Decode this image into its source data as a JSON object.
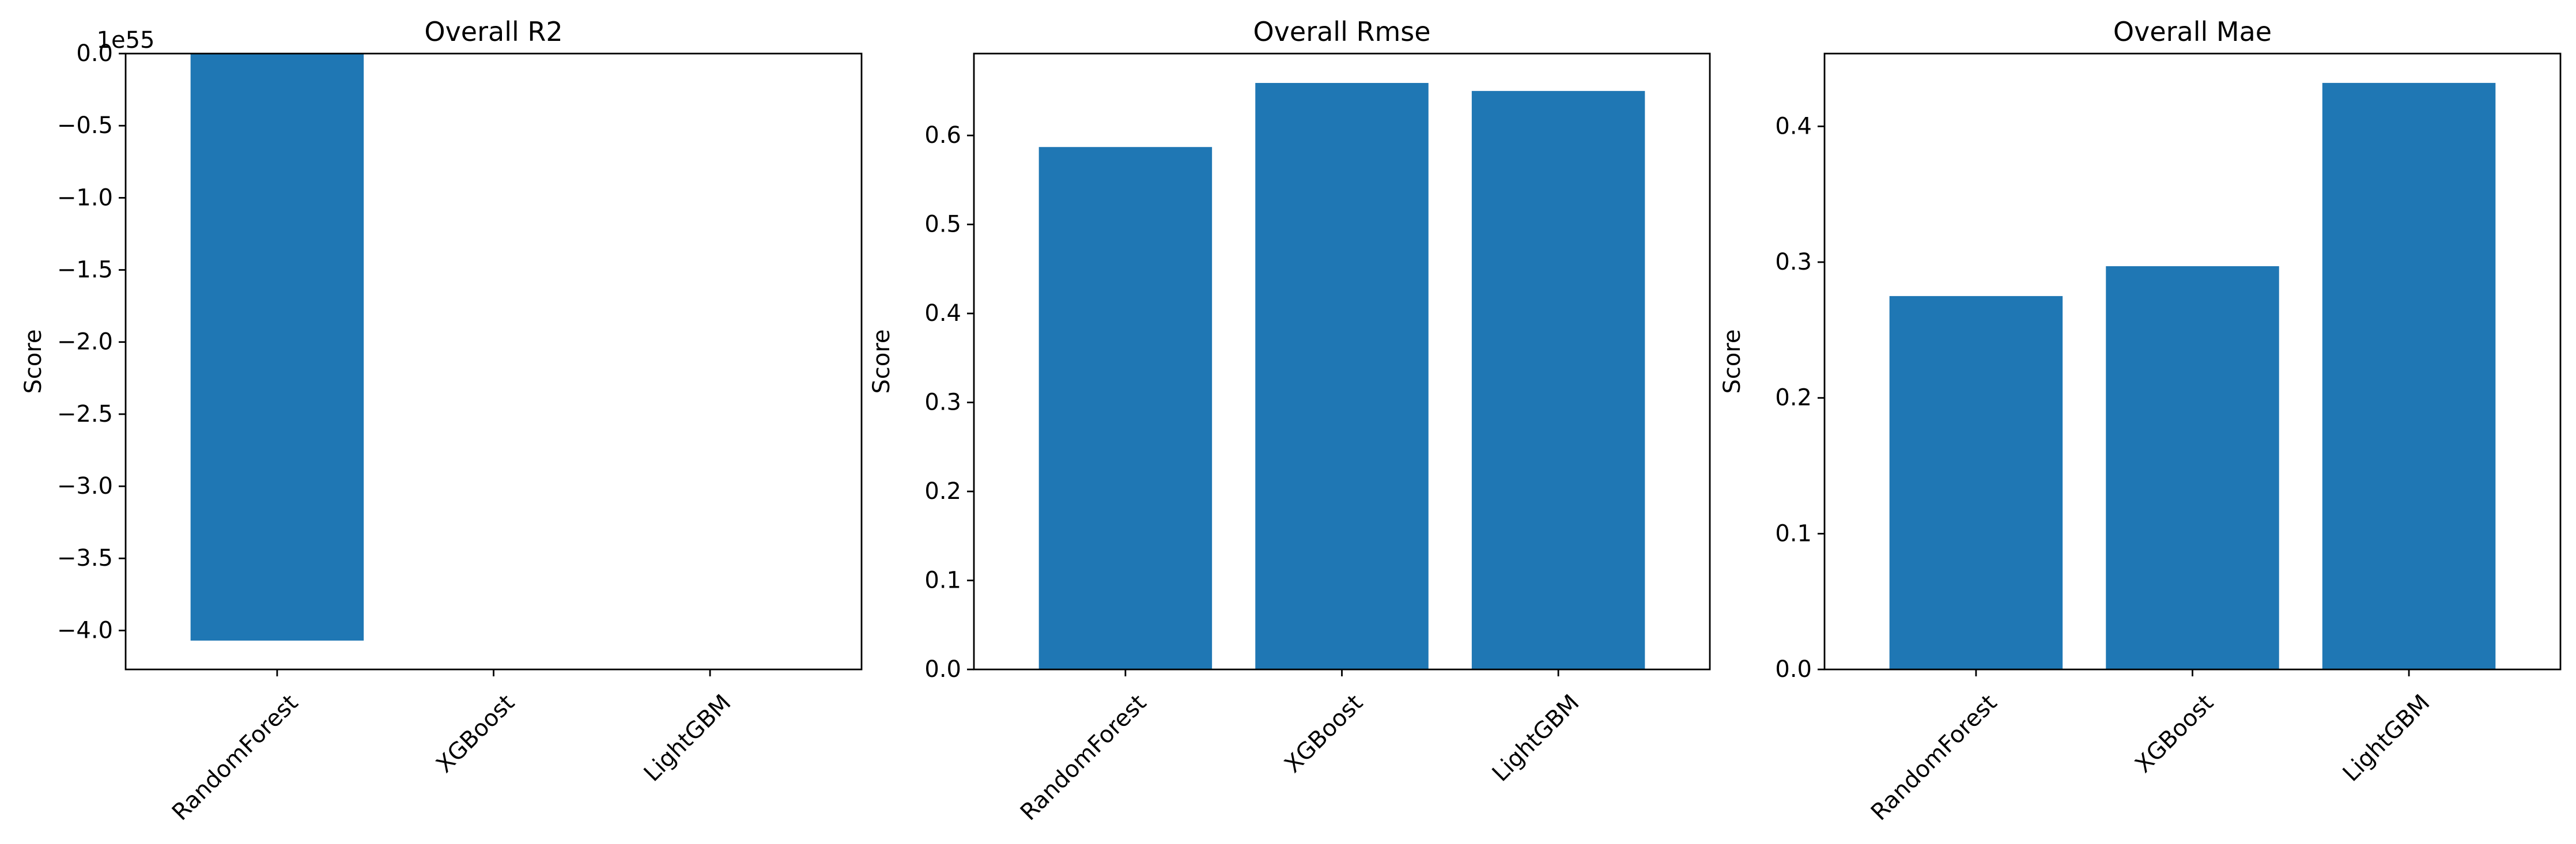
{
  "figure": {
    "bar_color": "#1f77b4"
  },
  "chart_data": [
    {
      "type": "bar",
      "title": "Overall R2",
      "xlabel": "",
      "ylabel": "Score",
      "offset_text": "1e55",
      "categories": [
        "RandomForest",
        "XGBoost",
        "LightGBM"
      ],
      "values": [
        -4.07e+55,
        0.0,
        0.0
      ],
      "ylim": [
        -4.27e+55,
        0.0
      ],
      "yticks": [
        0.0,
        -5e+54,
        -1e+55,
        -1.5e+55,
        -2e+55,
        -2.5e+55,
        -3e+55,
        -3.5e+55,
        -4e+55
      ],
      "ytick_labels": [
        "0.0",
        "−0.5",
        "−1.0",
        "−1.5",
        "−2.0",
        "−2.5",
        "−3.0",
        "−3.5",
        "−4.0"
      ],
      "grid": false
    },
    {
      "type": "bar",
      "title": "Overall Rmse",
      "xlabel": "",
      "ylabel": "Score",
      "categories": [
        "RandomForest",
        "XGBoost",
        "LightGBM"
      ],
      "values": [
        0.587,
        0.659,
        0.65
      ],
      "ylim": [
        0.0,
        0.692
      ],
      "yticks": [
        0.0,
        0.1,
        0.2,
        0.3,
        0.4,
        0.5,
        0.6
      ],
      "ytick_labels": [
        "0.0",
        "0.1",
        "0.2",
        "0.3",
        "0.4",
        "0.5",
        "0.6"
      ],
      "grid": false
    },
    {
      "type": "bar",
      "title": "Overall Mae",
      "xlabel": "",
      "ylabel": "Score",
      "categories": [
        "RandomForest",
        "XGBoost",
        "LightGBM"
      ],
      "values": [
        0.275,
        0.297,
        0.432
      ],
      "ylim": [
        0.0,
        0.4536
      ],
      "yticks": [
        0.0,
        0.1,
        0.2,
        0.3,
        0.4
      ],
      "ytick_labels": [
        "0.0",
        "0.1",
        "0.2",
        "0.3",
        "0.4"
      ],
      "grid": false
    }
  ]
}
